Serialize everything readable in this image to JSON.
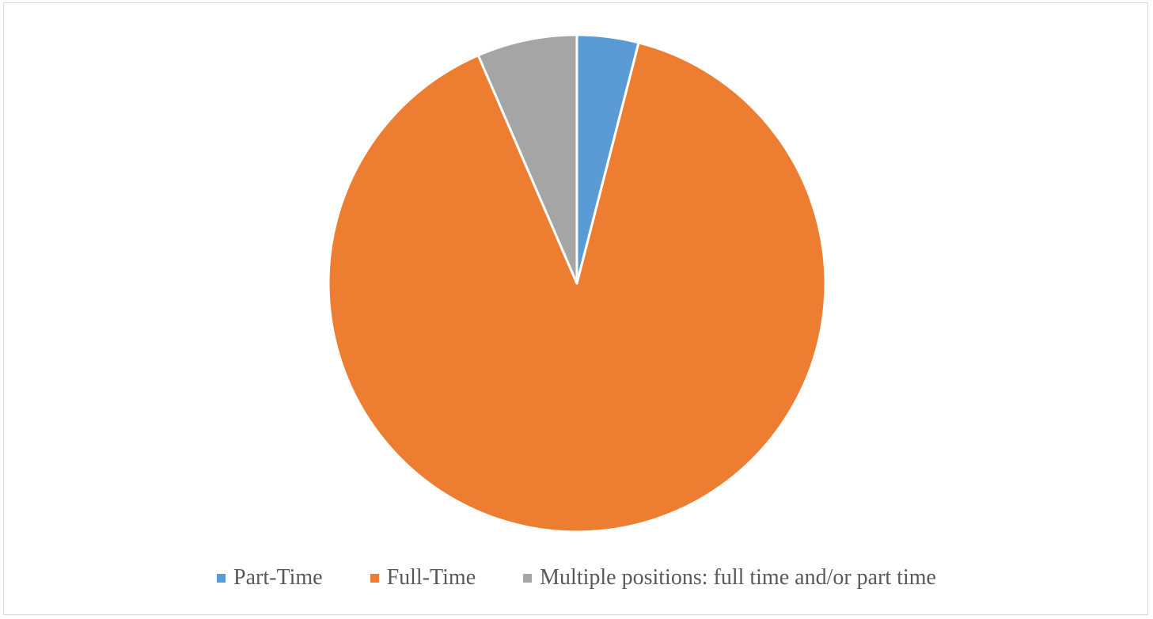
{
  "chart_data": {
    "type": "pie",
    "title": "",
    "slices": [
      {
        "label": "Part-Time",
        "value": 4,
        "color": "#5B9BD5"
      },
      {
        "label": "Full-Time",
        "value": 89.5,
        "color": "#ED7D31"
      },
      {
        "label": "Multiple positions: full time and/or part time",
        "value": 6.5,
        "color": "#A5A5A5"
      }
    ],
    "start_angle_deg": 0,
    "direction": "clockwise",
    "legend_placement": "bottom"
  }
}
